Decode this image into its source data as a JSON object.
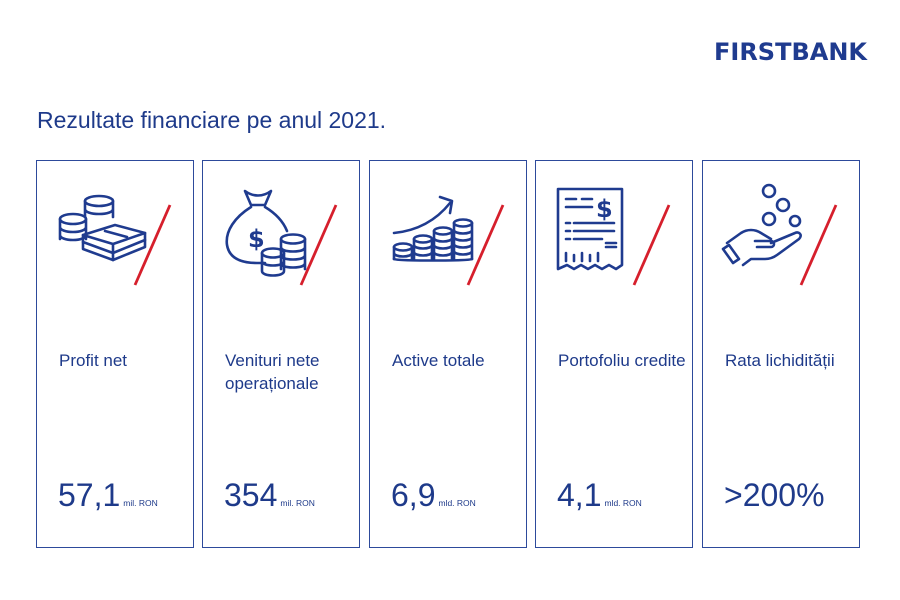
{
  "brand": {
    "name": "FIRSTBANK",
    "color": "#1f3b8f",
    "accent": "#d61f2c"
  },
  "headline": "Rezultate financiare pe anul 2021.",
  "cards": [
    {
      "icon": "coins-cash-stack-icon",
      "label": "Profit net",
      "value": "57,1",
      "unit": "mil. RON"
    },
    {
      "icon": "money-bag-icon",
      "label": "Venituri nete operaționale",
      "value": "354",
      "unit": "mil. RON"
    },
    {
      "icon": "growth-coins-icon",
      "label": "Active totale",
      "value": "6,9",
      "unit": "mld. RON"
    },
    {
      "icon": "invoice-dollar-icon",
      "label": "Portofoliu credite",
      "value": "4,1",
      "unit": "mld. RON"
    },
    {
      "icon": "hand-coins-icon",
      "label": "Rata lichidității",
      "value": ">200%",
      "unit": ""
    }
  ]
}
